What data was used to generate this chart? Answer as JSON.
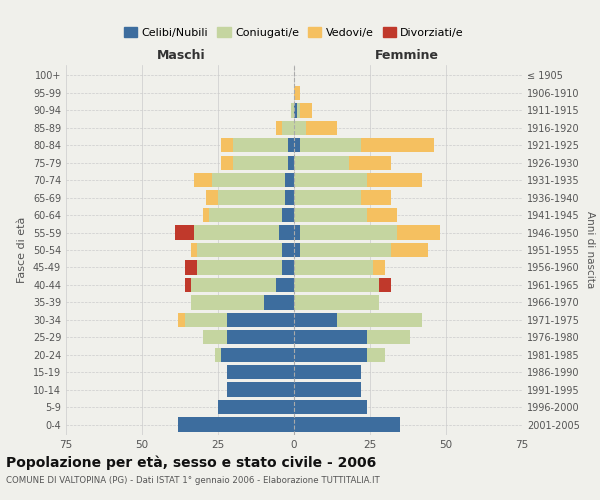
{
  "age_groups": [
    "0-4",
    "5-9",
    "10-14",
    "15-19",
    "20-24",
    "25-29",
    "30-34",
    "35-39",
    "40-44",
    "45-49",
    "50-54",
    "55-59",
    "60-64",
    "65-69",
    "70-74",
    "75-79",
    "80-84",
    "85-89",
    "90-94",
    "95-99",
    "100+"
  ],
  "birth_years": [
    "2001-2005",
    "1996-2000",
    "1991-1995",
    "1986-1990",
    "1981-1985",
    "1976-1980",
    "1971-1975",
    "1966-1970",
    "1961-1965",
    "1956-1960",
    "1951-1955",
    "1946-1950",
    "1941-1945",
    "1936-1940",
    "1931-1935",
    "1926-1930",
    "1921-1925",
    "1916-1920",
    "1911-1915",
    "1906-1910",
    "≤ 1905"
  ],
  "maschi": {
    "celibe": [
      38,
      25,
      22,
      22,
      24,
      22,
      22,
      10,
      6,
      4,
      4,
      5,
      4,
      3,
      3,
      2,
      2,
      0,
      0,
      0,
      0
    ],
    "coniugato": [
      0,
      0,
      0,
      0,
      2,
      8,
      14,
      24,
      28,
      28,
      28,
      28,
      24,
      22,
      24,
      18,
      18,
      4,
      1,
      0,
      0
    ],
    "vedovo": [
      0,
      0,
      0,
      0,
      0,
      0,
      2,
      0,
      0,
      0,
      2,
      0,
      2,
      4,
      6,
      4,
      4,
      2,
      0,
      0,
      0
    ],
    "divorziato": [
      0,
      0,
      0,
      0,
      0,
      0,
      0,
      0,
      2,
      4,
      0,
      6,
      0,
      0,
      0,
      0,
      0,
      0,
      0,
      0,
      0
    ]
  },
  "femmine": {
    "nubile": [
      35,
      24,
      22,
      22,
      24,
      24,
      14,
      0,
      0,
      0,
      2,
      2,
      0,
      0,
      0,
      0,
      2,
      0,
      1,
      0,
      0
    ],
    "coniugata": [
      0,
      0,
      0,
      0,
      6,
      14,
      28,
      28,
      28,
      26,
      30,
      32,
      24,
      22,
      24,
      18,
      20,
      4,
      1,
      0,
      0
    ],
    "vedova": [
      0,
      0,
      0,
      0,
      0,
      0,
      0,
      0,
      0,
      4,
      12,
      14,
      10,
      10,
      18,
      14,
      24,
      10,
      4,
      2,
      0
    ],
    "divorziata": [
      0,
      0,
      0,
      0,
      0,
      0,
      0,
      0,
      4,
      0,
      0,
      0,
      0,
      0,
      0,
      0,
      0,
      0,
      0,
      0,
      0
    ]
  },
  "colors": {
    "celibe": "#3d6d9e",
    "coniugato": "#c5d5a0",
    "vedovo": "#f5c060",
    "divorziato": "#c0392b"
  },
  "xlim": 75,
  "title": "Popolazione per età, sesso e stato civile - 2006",
  "subtitle": "COMUNE DI VALTOPINA (PG) - Dati ISTAT 1° gennaio 2006 - Elaborazione TUTTITALIA.IT",
  "xlabel_left": "Maschi",
  "xlabel_right": "Femmine",
  "ylabel_left": "Fasce di età",
  "ylabel_right": "Anni di nascita",
  "legend_labels": [
    "Celibi/Nubili",
    "Coniugati/e",
    "Vedovi/e",
    "Divorziati/e"
  ],
  "background_color": "#f0f0eb"
}
